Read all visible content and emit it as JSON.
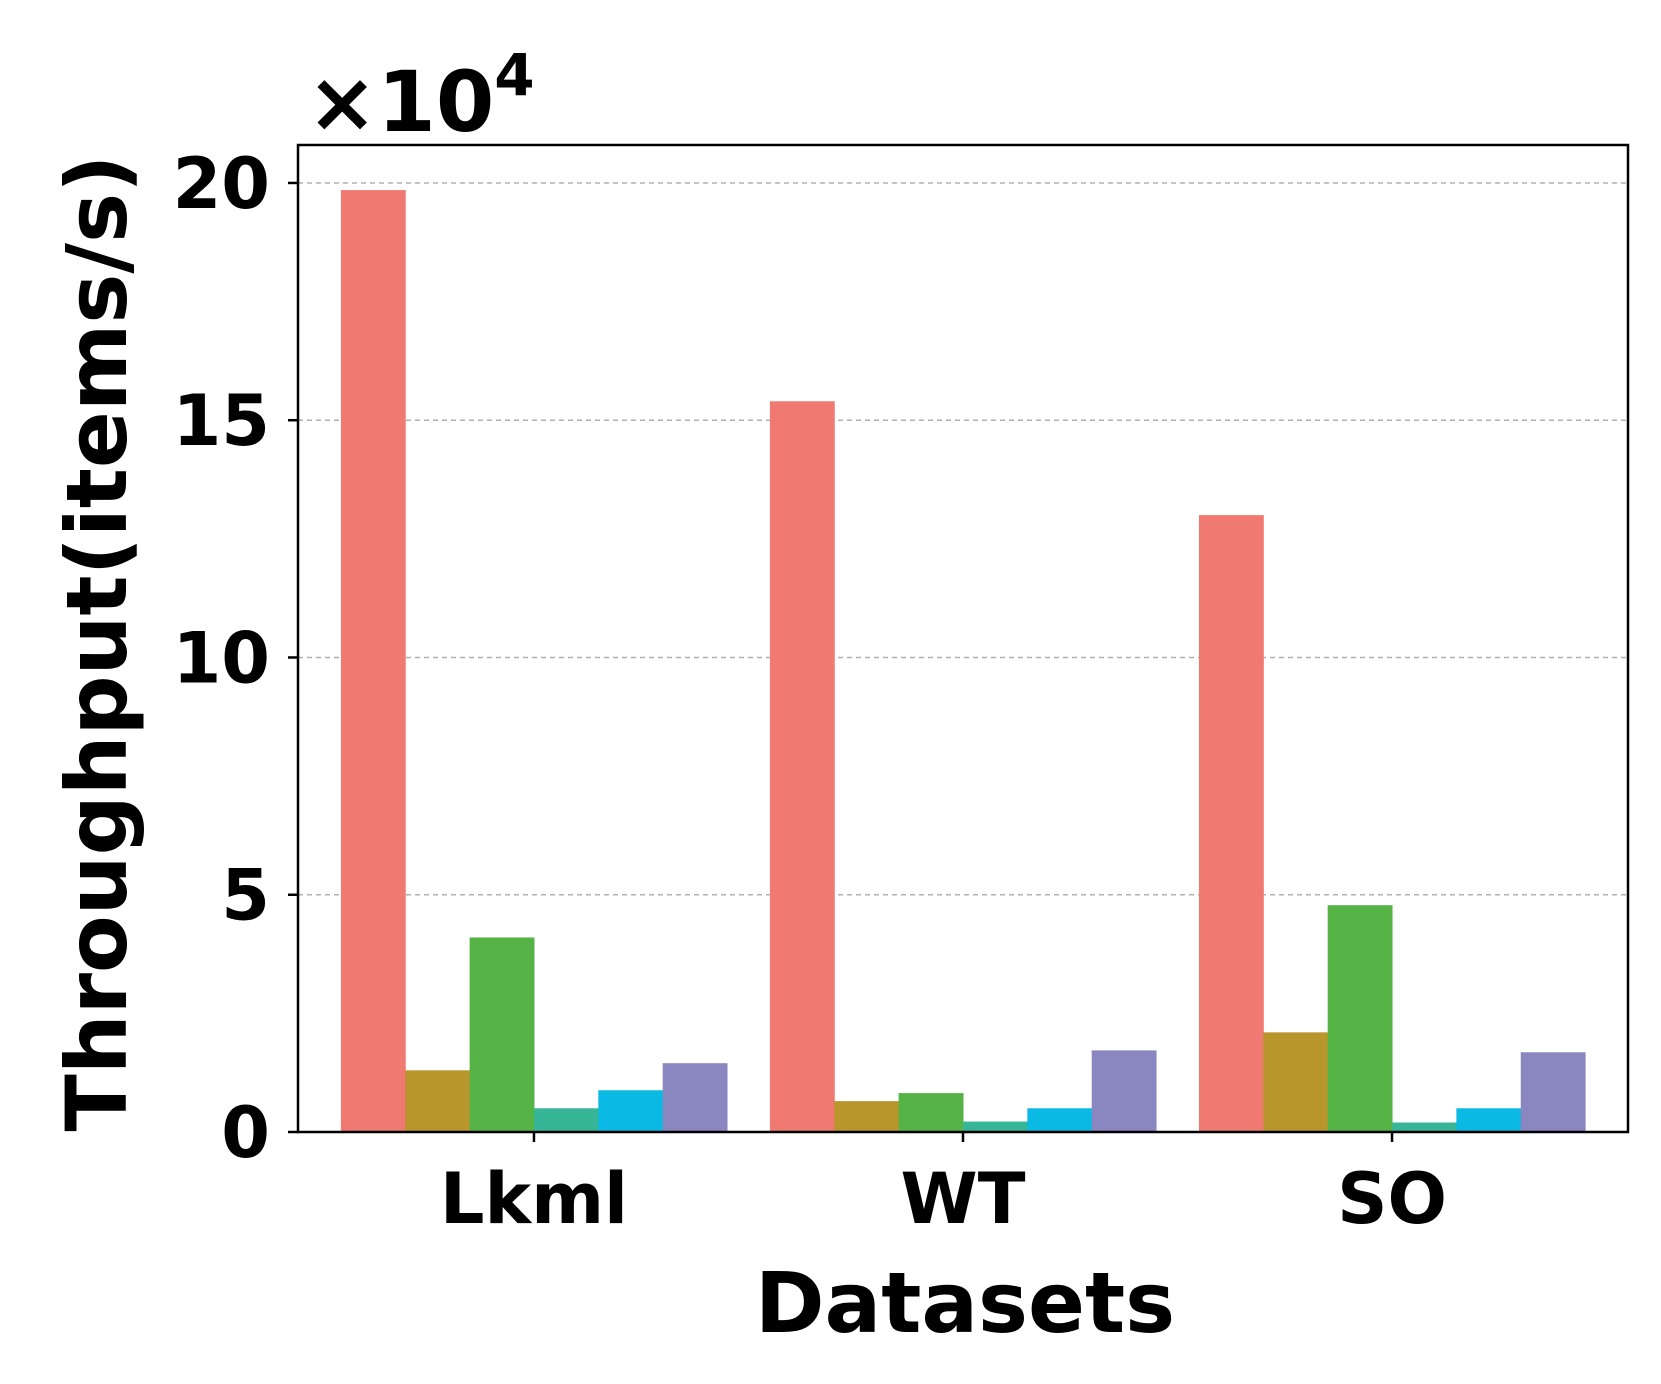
{
  "chart_data": {
    "type": "bar",
    "title": "",
    "xlabel": "Datasets",
    "ylabel": "Throughput(items/s)",
    "y_multiplier": {
      "base": "×10",
      "exponent": "4"
    },
    "categories": [
      "Lkml",
      "WT",
      "SO"
    ],
    "ylim": [
      0,
      20.8
    ],
    "yticks": [
      0,
      5,
      10,
      15,
      20
    ],
    "grid": "horizontal-dashed",
    "legend": "none",
    "series": [
      {
        "color": "#F07A72",
        "values": [
          19.85,
          15.4,
          13.0
        ]
      },
      {
        "color": "#B9962C",
        "values": [
          1.3,
          0.65,
          2.1
        ]
      },
      {
        "color": "#56B446",
        "values": [
          4.1,
          0.82,
          4.78
        ]
      },
      {
        "color": "#36B697",
        "values": [
          0.5,
          0.22,
          0.2
        ]
      },
      {
        "color": "#0ABAE4",
        "values": [
          0.88,
          0.5,
          0.5
        ]
      },
      {
        "color": "#8A86BF",
        "values": [
          1.45,
          1.72,
          1.68
        ]
      }
    ]
  }
}
